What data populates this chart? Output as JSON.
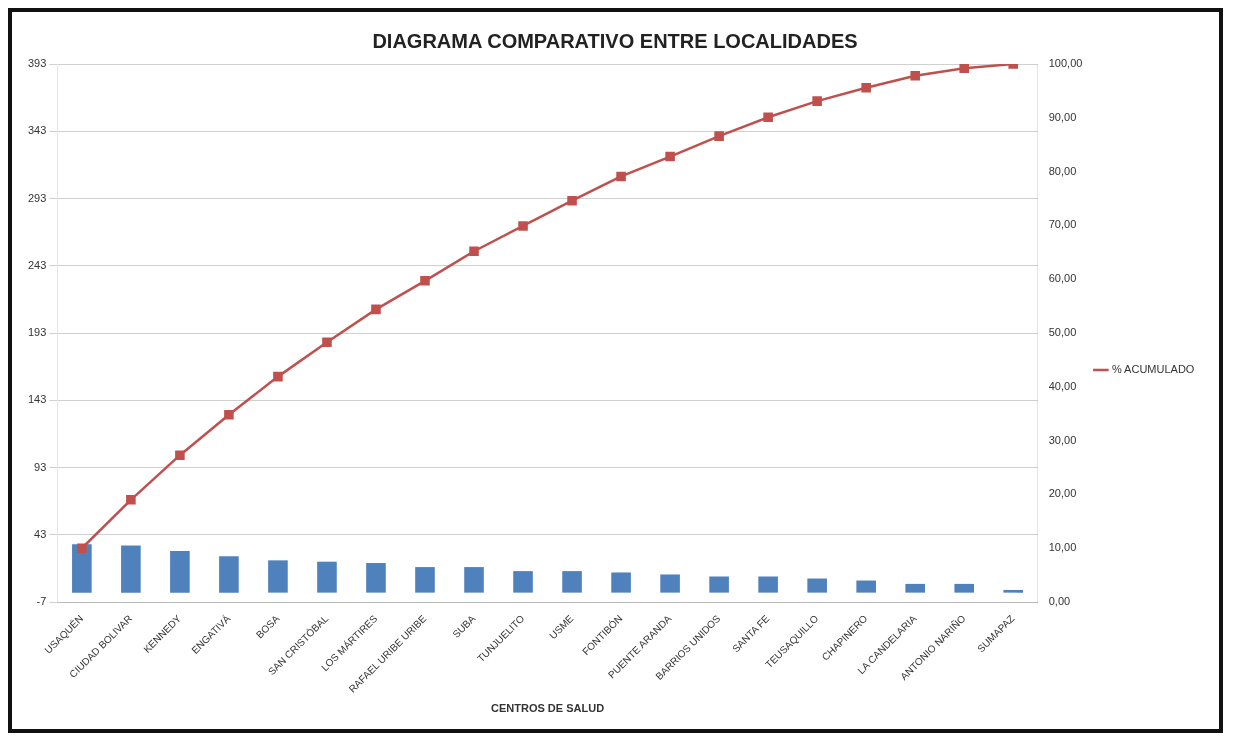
{
  "chart_data": {
    "type": "bar",
    "title": "DIAGRAMA COMPARATIVO ENTRE LOCALIDADES",
    "xlabel": "CENTROS DE SALUD",
    "categories": [
      "USAQUÉN",
      "CIUDAD BOLIVAR",
      "KENNEDY",
      "ENGATIVÁ",
      "BOSA",
      "SAN CRISTÓBAL",
      "LOS MÁRTIRES",
      "RAFAEL URIBE URIBE",
      "SUBA",
      "TUNJUELITO",
      "USME",
      "FONTIBÓN",
      "PUENTE ARANDA",
      "BARRIOS UNIDOS",
      "SANTA FE",
      "TEUSAQUILLO",
      "CHAPINERO",
      "LA CANDELARIA",
      "ANTONIO NARIÑO",
      "SUMAPAZ"
    ],
    "series": [
      {
        "color": "#4f81bd",
        "values": [
          36,
          35,
          31,
          27,
          24,
          23,
          22,
          19,
          19,
          16,
          16,
          15,
          13.5,
          12,
          12,
          10.5,
          9,
          6.5,
          6.5,
          2
        ]
      },
      {
        "type": "line",
        "name": "% ACUMULADO",
        "color": "#c0504d",
        "axis": "y2",
        "values": [
          10,
          19,
          27.3,
          34.8,
          41.9,
          48.3,
          54.4,
          59.7,
          65.2,
          69.9,
          74.6,
          79.1,
          82.8,
          86.6,
          90.1,
          93.1,
          95.6,
          97.8,
          99.2,
          100
        ]
      }
    ],
    "ylim": [
      -7,
      393
    ],
    "yticks": [
      -7,
      43,
      93,
      143,
      193,
      243,
      293,
      343,
      393
    ],
    "y2lim": [
      0,
      100
    ],
    "y2ticks": [
      {
        "value": 0,
        "label": "0,00"
      },
      {
        "value": 10,
        "label": "10,00"
      },
      {
        "value": 20,
        "label": "20,00"
      },
      {
        "value": 30,
        "label": "30,00"
      },
      {
        "value": 40,
        "label": "40,00"
      },
      {
        "value": 50,
        "label": "50,00"
      },
      {
        "value": 60,
        "label": "60,00"
      },
      {
        "value": 70,
        "label": "70,00"
      },
      {
        "value": 80,
        "label": "80,00"
      },
      {
        "value": 90,
        "label": "90,00"
      },
      {
        "value": 100,
        "label": "100,00"
      }
    ],
    "grid": "y",
    "legend": "right",
    "marker": "square"
  }
}
